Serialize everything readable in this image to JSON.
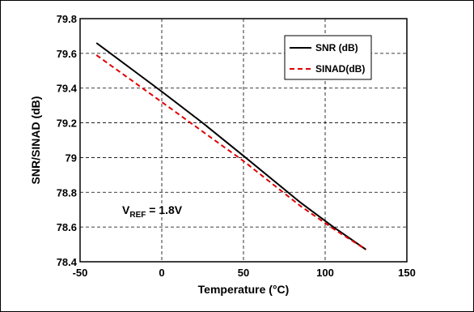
{
  "chart_data": {
    "type": "line",
    "xlabel": "Temperature (°C)",
    "ylabel": "SNR/SINAD (dB)",
    "xlim": [
      -50,
      150
    ],
    "ylim": [
      78.4,
      79.8
    ],
    "x_ticks": [
      "-50",
      "0",
      "50",
      "100",
      "150"
    ],
    "y_ticks": [
      "78.4",
      "78.6",
      "78.8",
      "79",
      "79.2",
      "79.4",
      "79.6",
      "79.8"
    ],
    "grid": true,
    "legend_position": "top-right",
    "series": [
      {
        "name": "SNR (dB)",
        "color": "#000000",
        "dash": "solid",
        "x": [
          -40,
          0,
          25,
          50,
          85,
          105,
          125
        ],
        "y": [
          79.66,
          79.38,
          79.2,
          79.01,
          78.74,
          78.6,
          78.47
        ]
      },
      {
        "name": "SINAD(dB)",
        "color": "#e00000",
        "dash": "dashed",
        "x": [
          -40,
          0,
          25,
          50,
          85,
          105,
          125
        ],
        "y": [
          79.59,
          79.32,
          79.15,
          78.98,
          78.72,
          78.59,
          78.47
        ]
      }
    ],
    "annotation": {
      "main": "V",
      "sub": "REF",
      "rest": " = 1.8V"
    }
  }
}
